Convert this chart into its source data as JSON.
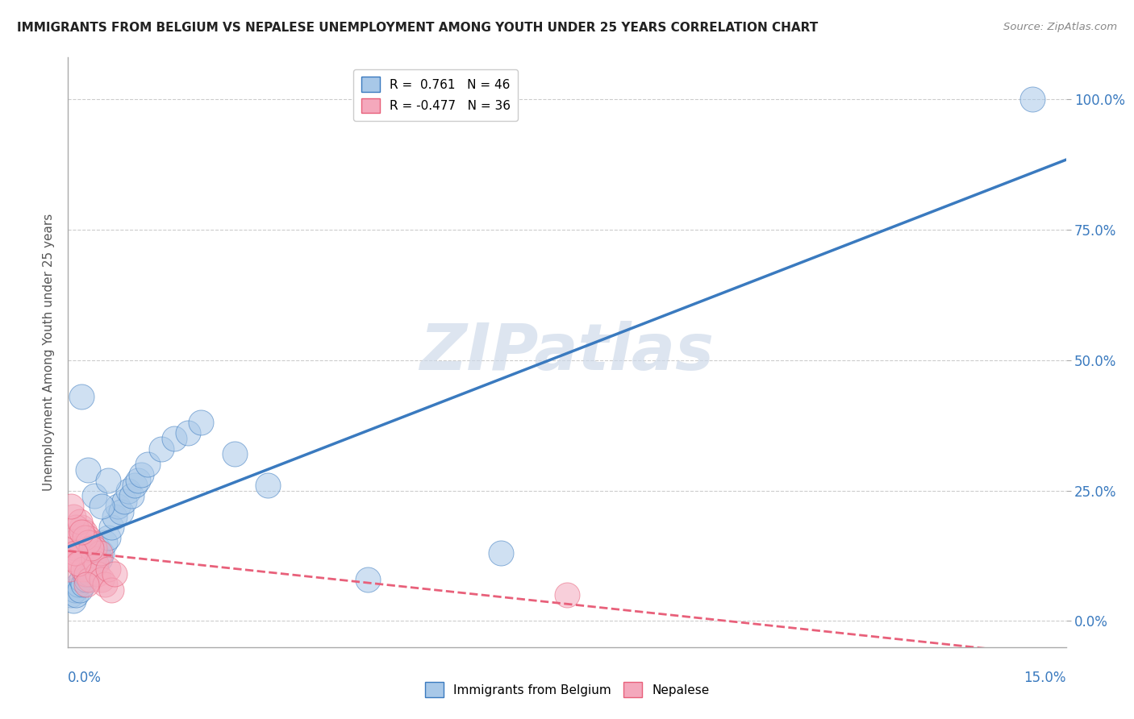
{
  "title": "IMMIGRANTS FROM BELGIUM VS NEPALESE UNEMPLOYMENT AMONG YOUTH UNDER 25 YEARS CORRELATION CHART",
  "source": "Source: ZipAtlas.com",
  "ylabel": "Unemployment Among Youth under 25 years",
  "ytick_values": [
    0,
    25,
    50,
    75,
    100
  ],
  "xlim": [
    0,
    15
  ],
  "ylim": [
    -5,
    108
  ],
  "blue_R": 0.761,
  "blue_N": 46,
  "pink_R": -0.477,
  "pink_N": 36,
  "blue_color": "#a8c8e8",
  "pink_color": "#f4a8bc",
  "blue_line_color": "#3a7abf",
  "pink_line_color": "#e8607a",
  "watermark": "ZIPatlas",
  "legend_label_blue": "Immigrants from Belgium",
  "legend_label_pink": "Nepalese",
  "blue_scatter_x": [
    0.05,
    0.08,
    0.1,
    0.12,
    0.15,
    0.18,
    0.2,
    0.22,
    0.25,
    0.28,
    0.3,
    0.32,
    0.35,
    0.38,
    0.4,
    0.42,
    0.45,
    0.48,
    0.5,
    0.55,
    0.6,
    0.65,
    0.7,
    0.75,
    0.8,
    0.85,
    0.9,
    0.95,
    1.0,
    1.05,
    1.1,
    1.2,
    1.4,
    1.6,
    1.8,
    2.0,
    2.5,
    3.0,
    0.3,
    0.4,
    0.5,
    0.6,
    4.5,
    6.5,
    0.2,
    14.5
  ],
  "blue_scatter_y": [
    5,
    4,
    6,
    5,
    7,
    6,
    8,
    7,
    9,
    8,
    10,
    9,
    11,
    12,
    13,
    11,
    14,
    12,
    13,
    15,
    16,
    18,
    20,
    22,
    21,
    23,
    25,
    24,
    26,
    27,
    28,
    30,
    33,
    35,
    36,
    38,
    32,
    26,
    29,
    24,
    22,
    27,
    8,
    13,
    43,
    100
  ],
  "pink_scatter_x": [
    0.02,
    0.05,
    0.08,
    0.1,
    0.12,
    0.15,
    0.18,
    0.2,
    0.22,
    0.25,
    0.28,
    0.3,
    0.32,
    0.35,
    0.38,
    0.4,
    0.42,
    0.45,
    0.48,
    0.5,
    0.55,
    0.6,
    0.65,
    0.7,
    0.08,
    0.12,
    0.18,
    0.25,
    0.3,
    0.35,
    0.05,
    0.1,
    0.15,
    0.2,
    7.5,
    0.28
  ],
  "pink_scatter_y": [
    10,
    12,
    15,
    14,
    16,
    13,
    11,
    18,
    10,
    17,
    9,
    16,
    8,
    15,
    12,
    14,
    11,
    9,
    13,
    8,
    7,
    10,
    6,
    9,
    20,
    18,
    19,
    16,
    15,
    14,
    22,
    13,
    11,
    17,
    5,
    7
  ]
}
